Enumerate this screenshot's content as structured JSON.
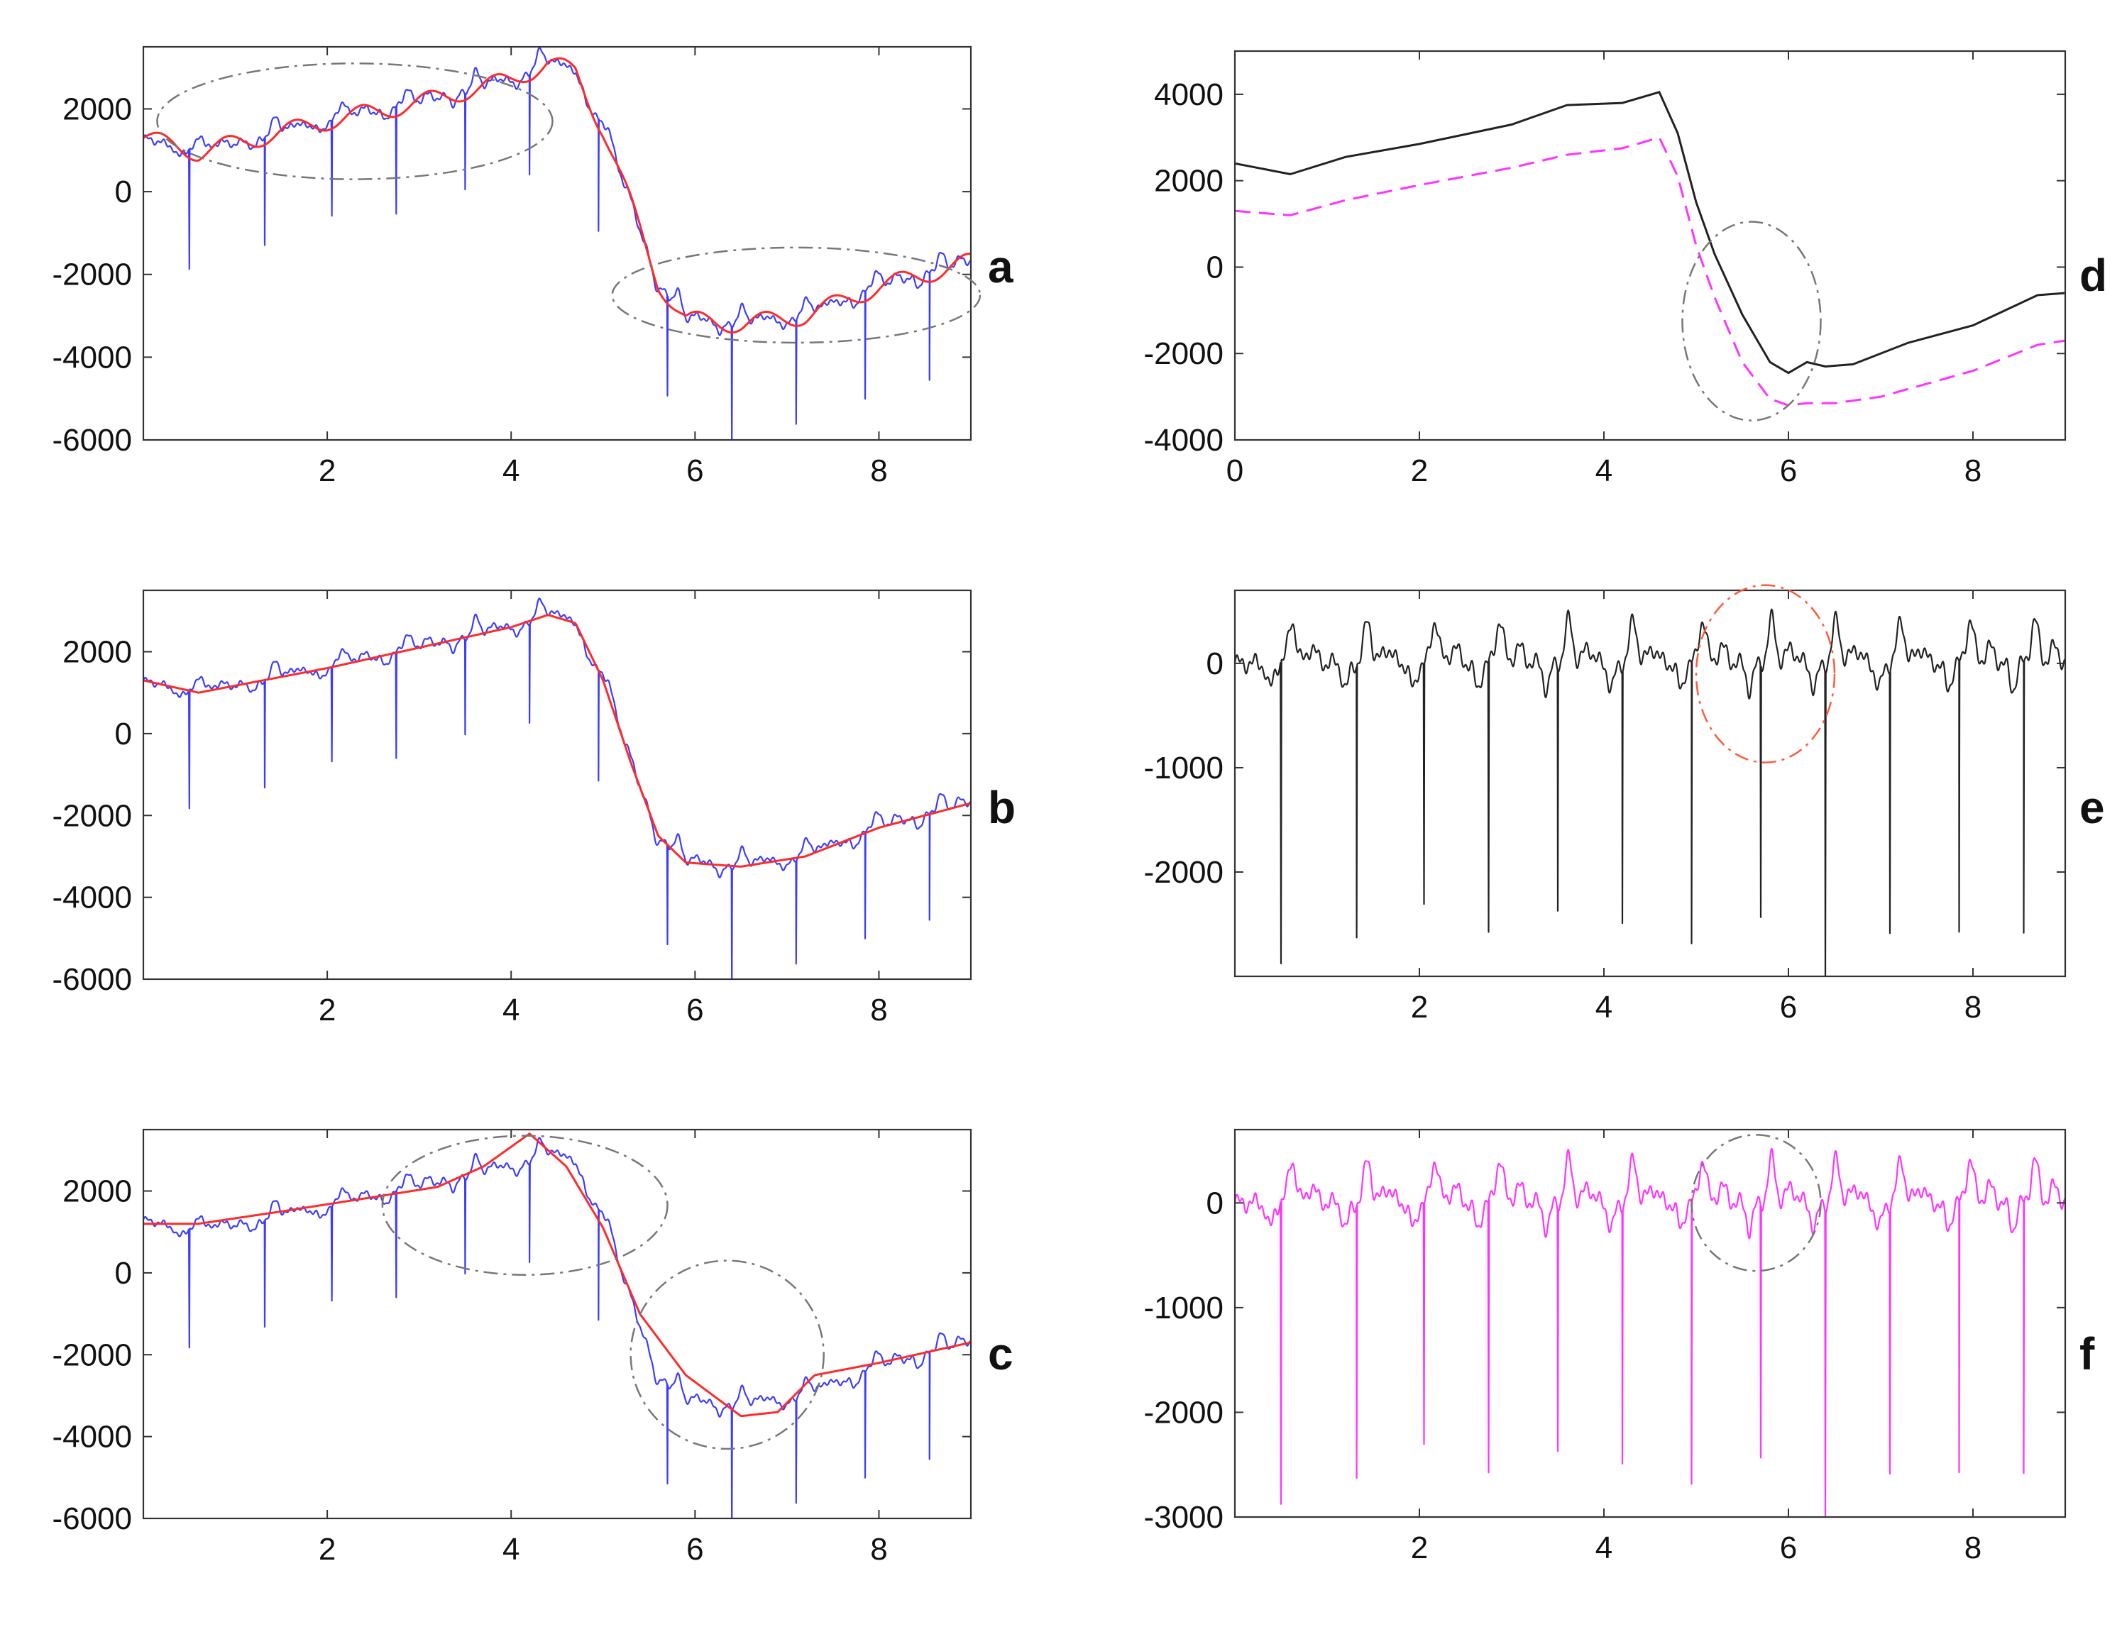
{
  "chart_data": [
    {
      "id": "a",
      "type": "line",
      "letter": "a",
      "xlim": [
        0,
        9
      ],
      "ylim": [
        -6000,
        3500
      ],
      "xticks": [
        2,
        4,
        6,
        8
      ],
      "yticks": [
        2000,
        0,
        -2000,
        -4000,
        -6000
      ],
      "signal": {
        "color": "#3c3cff",
        "style": "solid",
        "shape": "ecg",
        "base": "a"
      },
      "smooth": {
        "color": "#ff2a2a",
        "style": "solid",
        "shape": "wavy",
        "base": "a"
      },
      "annotations": [
        {
          "cx": 2.3,
          "cy": 1700,
          "rx": 2.15,
          "ry": 1400,
          "color": "#777777"
        },
        {
          "cx": 7.1,
          "cy": -2500,
          "rx": 2.0,
          "ry": 1150,
          "color": "#777777"
        }
      ]
    },
    {
      "id": "b",
      "type": "line",
      "letter": "b",
      "xlim": [
        0,
        9
      ],
      "ylim": [
        -6000,
        3500
      ],
      "xticks": [
        2,
        4,
        6,
        8
      ],
      "yticks": [
        2000,
        0,
        -2000,
        -4000,
        -6000
      ],
      "signal": {
        "color": "#3c3cff",
        "style": "solid",
        "shape": "ecg",
        "base": "b"
      },
      "smooth": {
        "color": "#ff2a2a",
        "style": "solid",
        "shape": "smooth",
        "base": "b"
      },
      "annotations": []
    },
    {
      "id": "c",
      "type": "line",
      "letter": "c",
      "xlim": [
        0,
        9
      ],
      "ylim": [
        -6000,
        3500
      ],
      "xticks": [
        2,
        4,
        6,
        8
      ],
      "yticks": [
        2000,
        0,
        -2000,
        -4000,
        -6000
      ],
      "signal": {
        "color": "#3c3cff",
        "style": "solid",
        "shape": "ecg",
        "base": "b"
      },
      "smooth": {
        "color": "#ff2a2a",
        "style": "solid",
        "shape": "smooth",
        "base": "c"
      },
      "annotations": [
        {
          "cx": 4.15,
          "cy": 1650,
          "rx": 1.55,
          "ry": 1700,
          "color": "#777777"
        },
        {
          "cx": 6.35,
          "cy": -2000,
          "rx": 1.05,
          "ry": 2300,
          "color": "#777777"
        }
      ]
    },
    {
      "id": "d",
      "type": "line",
      "letter": "d",
      "xlim": [
        0,
        9
      ],
      "ylim": [
        -4000,
        5000
      ],
      "xticks": [
        0,
        2,
        4,
        6,
        8
      ],
      "yticks": [
        4000,
        2000,
        0,
        -2000,
        -4000
      ],
      "baseline1": {
        "color": "#222222",
        "style": "solid",
        "x": [
          0,
          0.6,
          1.2,
          2,
          3,
          3.6,
          4.2,
          4.6,
          4.8,
          5.0,
          5.2,
          5.5,
          5.8,
          6.0,
          6.2,
          6.4,
          6.7,
          7.3,
          8,
          8.7,
          9
        ],
        "y": [
          2400,
          2150,
          2550,
          2850,
          3300,
          3750,
          3800,
          4050,
          3100,
          1500,
          300,
          -1100,
          -2200,
          -2450,
          -2200,
          -2300,
          -2250,
          -1750,
          -1350,
          -650,
          -600
        ]
      },
      "baseline2": {
        "color": "#ff33ff",
        "style": "dashed",
        "x": [
          0,
          0.6,
          1.2,
          2,
          3,
          3.6,
          4.2,
          4.6,
          4.8,
          5.0,
          5.2,
          5.5,
          5.8,
          6.0,
          6.2,
          6.5,
          7.0,
          8,
          8.7,
          9
        ],
        "y": [
          1300,
          1200,
          1550,
          1900,
          2300,
          2600,
          2750,
          3000,
          2100,
          500,
          -700,
          -2200,
          -3050,
          -3200,
          -3150,
          -3150,
          -3000,
          -2400,
          -1800,
          -1700
        ]
      },
      "annotations": [
        {
          "cx": 5.6,
          "cy": -1250,
          "rx": 0.75,
          "ry": 2300,
          "color": "#777777"
        }
      ]
    },
    {
      "id": "e",
      "type": "line",
      "letter": "e",
      "xlim": [
        0,
        9
      ],
      "ylim": [
        -3000,
        700
      ],
      "xticks": [
        2,
        4,
        6,
        8
      ],
      "yticks": [
        0,
        -1000,
        -2000
      ],
      "signal": {
        "color": "#222222",
        "style": "solid",
        "shape": "ecg",
        "base": "flat"
      },
      "annotations": [
        {
          "cx": 5.75,
          "cy": -100,
          "rx": 0.75,
          "ry": 850,
          "color": "#ff5a3c"
        }
      ]
    },
    {
      "id": "f",
      "type": "line",
      "letter": "f",
      "xlim": [
        0,
        9
      ],
      "ylim": [
        -3000,
        700
      ],
      "xticks": [
        2,
        4,
        6,
        8
      ],
      "yticks": [
        0,
        -1000,
        -2000,
        -3000
      ],
      "signal": {
        "color": "#ff33ff",
        "style": "solid",
        "shape": "ecg",
        "base": "flat"
      },
      "annotations": [
        {
          "cx": 5.65,
          "cy": 0,
          "rx": 0.7,
          "ry": 650,
          "color": "#777777"
        }
      ]
    }
  ],
  "ecg": {
    "beats": [
      0.5,
      1.32,
      2.05,
      2.75,
      3.5,
      4.2,
      4.95,
      5.7,
      6.4,
      7.1,
      7.85,
      8.55
    ],
    "spike_depths": [
      2900,
      2600,
      2300,
      2600,
      2300,
      2400,
      2700,
      2400,
      3000,
      2500,
      2600,
      2600
    ]
  }
}
